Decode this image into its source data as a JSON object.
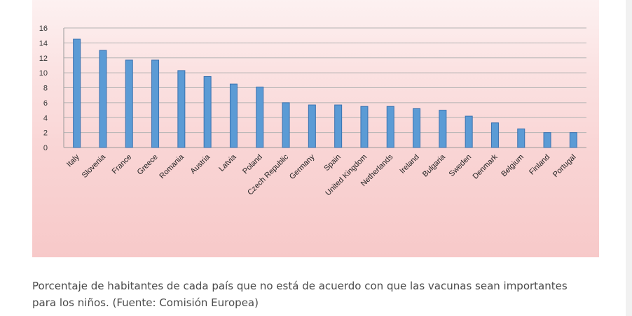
{
  "chart_data": {
    "type": "bar",
    "categories": [
      "Italy",
      "Slovenia",
      "France",
      "Greece",
      "Romania",
      "Austria",
      "Latvia",
      "Poland",
      "Czech Republic",
      "Germany",
      "Spain",
      "United Kingdom",
      "Netherlands",
      "Ireland",
      "Bulgaria",
      "Sweden",
      "Denmark",
      "Belgium",
      "Finland",
      "Portugal"
    ],
    "values": [
      14.5,
      13.0,
      11.7,
      11.7,
      10.3,
      9.5,
      8.5,
      8.1,
      6.0,
      5.7,
      5.7,
      5.5,
      5.5,
      5.2,
      5.0,
      4.2,
      3.3,
      2.5,
      2.0,
      2.0
    ],
    "yticks": [
      0,
      2,
      4,
      6,
      8,
      10,
      12,
      14,
      16
    ],
    "ylim": [
      0,
      16
    ],
    "grid": true,
    "bar_color": "#5b9bd5",
    "bar_edge_color": "#3a72b0"
  },
  "caption": "Porcentaje de habitantes de cada país que no está de acuerdo con que las vacunas sean importantes para los niños. (Fuente: Comisión Europea)"
}
